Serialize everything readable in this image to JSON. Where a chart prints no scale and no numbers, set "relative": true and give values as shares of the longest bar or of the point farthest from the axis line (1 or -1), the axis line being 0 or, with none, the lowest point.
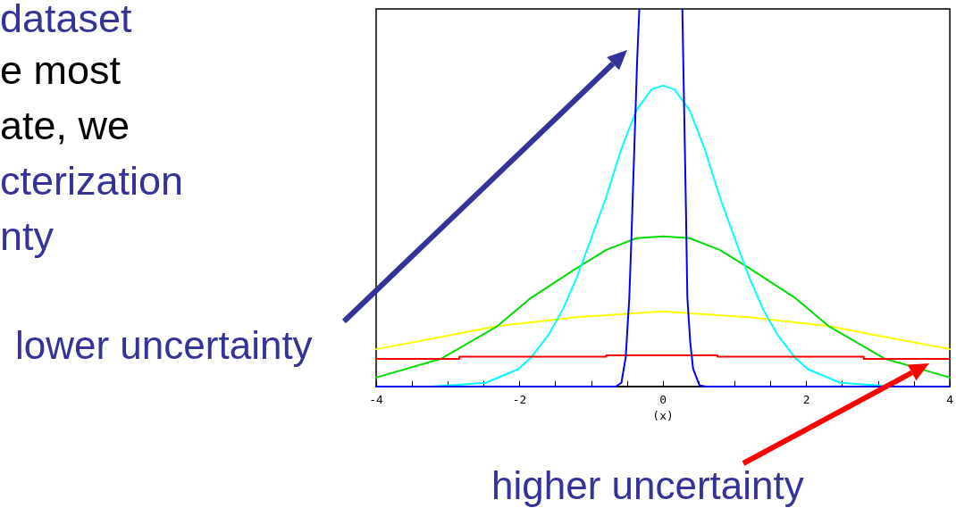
{
  "chart_data": {
    "type": "line",
    "xlabel": "(x)",
    "relative": true,
    "xlim": [
      -4,
      4
    ],
    "xticks": [
      -4,
      {
        "value": -3.5,
        "label": null
      },
      {
        "value": -3,
        "label": null
      },
      {
        "value": -2.5,
        "label": null
      },
      -2,
      {
        "value": -1.5,
        "label": null
      },
      {
        "value": -1,
        "label": null
      },
      {
        "value": -0.5,
        "label": null
      },
      0,
      {
        "value": 0.5,
        "label": null
      },
      {
        "value": 1,
        "label": null
      },
      {
        "value": 1.5,
        "label": null
      },
      2,
      {
        "value": 2.5,
        "label": null
      },
      {
        "value": 3,
        "label": null
      },
      {
        "value": 3.5,
        "label": null
      },
      4
    ],
    "grid": false,
    "marker": "none",
    "series": [
      {
        "color": "#ffff00",
        "x": [
          -4,
          -3,
          -2.31,
          -1.2,
          0,
          1.2,
          2.31,
          3,
          4
        ],
        "values": [
          0.099,
          0.135,
          0.16,
          0.184,
          0.199,
          0.184,
          0.16,
          0.135,
          0.099
        ]
      },
      {
        "color": "#00dd00",
        "x": [
          -4,
          -3.09,
          -2.31,
          -1.84,
          -1.2,
          -0.79,
          -0.37,
          0,
          0.37,
          0.79,
          1.2,
          1.84,
          2.31,
          3.09,
          4
        ],
        "values": [
          0.024,
          0.074,
          0.16,
          0.235,
          0.314,
          0.362,
          0.393,
          0.398,
          0.393,
          0.362,
          0.314,
          0.235,
          0.16,
          0.074,
          0.024
        ]
      },
      {
        "color": "#00ffff",
        "x": [
          -4,
          -3.23,
          -2.47,
          -2.02,
          -1.84,
          -1.6,
          -1.4,
          -1.2,
          -1.0,
          -0.79,
          -0.58,
          -0.37,
          -0.16,
          0,
          0.16,
          0.37,
          0.58,
          0.79,
          1.0,
          1.2,
          1.4,
          1.6,
          1.84,
          2.02,
          2.47,
          3.23,
          4
        ],
        "values": [
          0,
          0,
          0.01,
          0.046,
          0.077,
          0.136,
          0.203,
          0.29,
          0.393,
          0.503,
          0.63,
          0.732,
          0.787,
          0.797,
          0.787,
          0.732,
          0.63,
          0.503,
          0.393,
          0.29,
          0.203,
          0.136,
          0.077,
          0.046,
          0.01,
          0,
          0
        ]
      },
      {
        "color": "#ff0000",
        "type": "step",
        "x": [
          -4,
          -2.84,
          -0.79,
          0.76,
          2.8,
          4
        ],
        "values": [
          0.073,
          0.079,
          0.083,
          0.079,
          0.073,
          0.073
        ]
      },
      {
        "color": "#0000ff",
        "x": [
          -4,
          -0.66,
          -0.58,
          -0.52,
          -0.47,
          -0.44,
          -0.4,
          -0.36,
          -0.33,
          0,
          0.27,
          0.32,
          0.34,
          0.38,
          0.42,
          0.51,
          0.6,
          4
        ],
        "values": [
          0,
          0,
          0.01,
          0.077,
          0.235,
          0.393,
          0.63,
          0.866,
          1,
          null,
          1,
          0.472,
          0.235,
          0.118,
          0.047,
          0.003,
          0,
          0
        ]
      }
    ],
    "annotations": [
      "dataset",
      "e most",
      "ate, we",
      "cterization",
      "nty",
      "lower uncertainty",
      "higher uncertainty"
    ]
  }
}
